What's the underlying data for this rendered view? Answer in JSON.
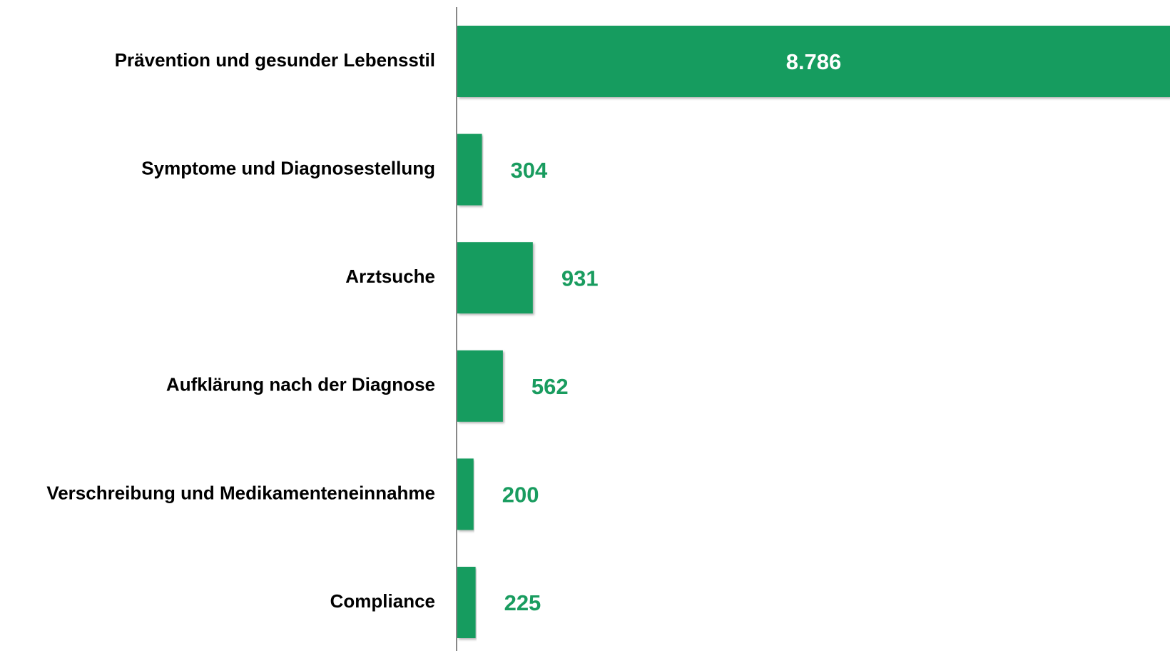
{
  "chart_data": {
    "type": "barh",
    "categories": [
      "Prävention und gesunder Lebensstil",
      "Symptome und Diagnosestellung",
      "Arztsuche",
      "Aufklärung nach der Diagnose",
      "Verschreibung und Medikamenteneinnahme",
      "Compliance"
    ],
    "values": [
      8786,
      304,
      931,
      562,
      200,
      225
    ],
    "value_labels": [
      "8.786",
      "304",
      "931",
      "562",
      "200",
      "225"
    ],
    "color": "#199c5f",
    "xlim": [
      0,
      8786
    ]
  }
}
